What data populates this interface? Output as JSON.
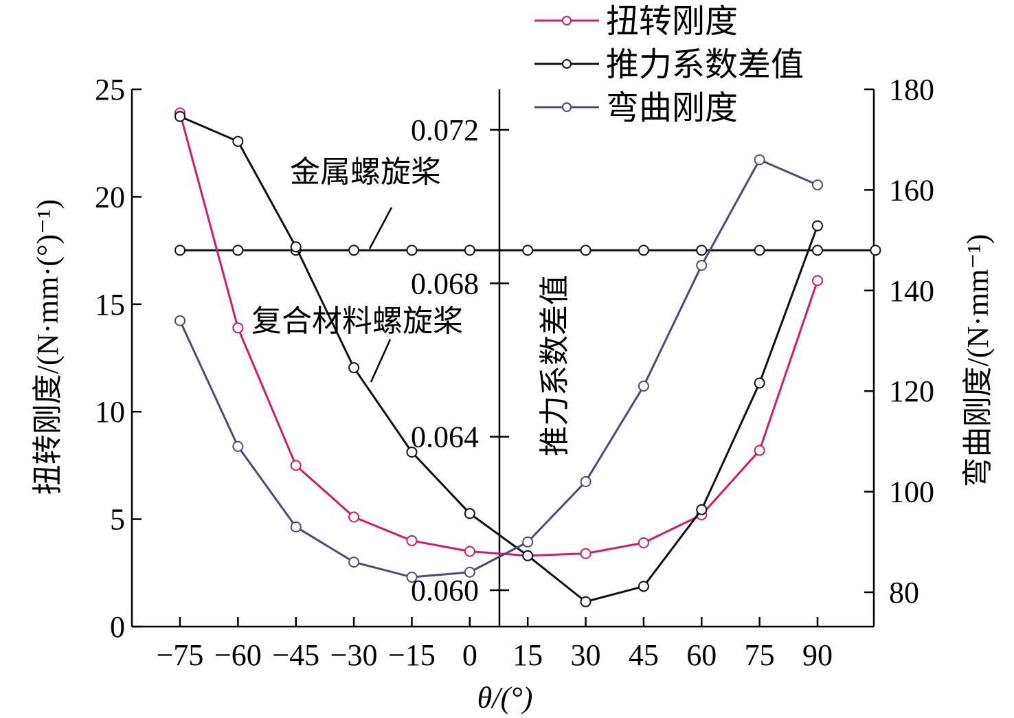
{
  "colors": {
    "torsion": "#d81b60",
    "thrust": "#111111",
    "bending": "#4b4b7a",
    "axis": "#000000"
  },
  "chart_data": {
    "type": "line",
    "x": [
      -75,
      -60,
      -45,
      -30,
      -15,
      0,
      15,
      30,
      45,
      60,
      75,
      90
    ],
    "xlabel": "θ/(°)",
    "xticks": [
      "−75",
      "−60",
      "−45",
      "−30",
      "−15",
      "0",
      "15",
      "30",
      "45",
      "60",
      "75",
      "90"
    ],
    "y_left": {
      "label": "扭转刚度/(N·mm·(°)⁻¹)",
      "ylim": [
        0,
        25
      ],
      "ticks": [
        "0",
        "5",
        "10",
        "15",
        "20",
        "25"
      ]
    },
    "y_middle": {
      "label": "推力系数差值",
      "ylim": [
        0.0587,
        0.0737
      ],
      "ticks": [
        "0.060",
        "0.064",
        "0.068",
        "0.072"
      ]
    },
    "y_right": {
      "label": "弯曲刚度/(N·mm⁻¹)",
      "ylim": [
        73,
        180
      ],
      "ticks": [
        "80",
        "100",
        "120",
        "140",
        "160",
        "180"
      ]
    },
    "series": [
      {
        "name": "扭转刚度",
        "axis": "left",
        "values": [
          23.9,
          13.9,
          7.5,
          5.1,
          4.0,
          3.5,
          3.3,
          3.4,
          3.9,
          5.2,
          8.2,
          16.1
        ]
      },
      {
        "name": "推力系数差值",
        "axis": "middle",
        "values": [
          0.07235,
          0.0717,
          0.06895,
          0.0658,
          0.0636,
          0.062,
          0.0609,
          0.0597,
          0.0601,
          0.0621,
          0.0654,
          0.0695
        ]
      },
      {
        "name": "弯曲刚度",
        "axis": "right",
        "values": [
          134,
          109,
          93,
          86,
          83,
          84,
          90,
          102,
          121,
          145,
          166,
          161
        ]
      }
    ],
    "reference_line": {
      "axis": "right",
      "value": 148,
      "x_start": -75,
      "x_end": 105
    },
    "annotations": [
      "金属螺旋桨",
      "复合材料螺旋桨"
    ],
    "legend_position": "top-right",
    "grid": false
  }
}
